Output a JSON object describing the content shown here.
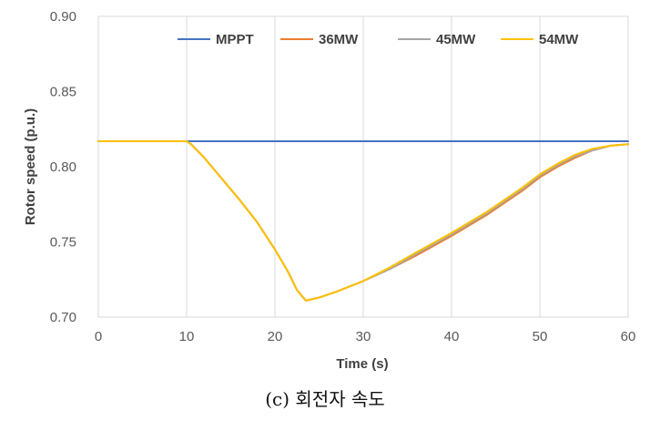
{
  "caption": "(c) 회전자 속도",
  "chart_data": {
    "type": "line",
    "xlabel": "Time (s)",
    "ylabel": "Rotor speed (p.u.)",
    "xlim": [
      0,
      60
    ],
    "ylim": [
      0.7,
      0.9
    ],
    "xticks": [
      0,
      10,
      20,
      30,
      40,
      50,
      60
    ],
    "yticks": [
      0.7,
      0.75,
      0.8,
      0.85,
      0.9
    ],
    "xtick_labels": [
      "0",
      "10",
      "20",
      "30",
      "40",
      "50",
      "60"
    ],
    "ytick_labels": [
      "0.70",
      "0.75",
      "0.80",
      "0.85",
      "0.90"
    ],
    "grid": "vertical",
    "legend_position": "top",
    "series": [
      {
        "name": "MPPT",
        "color": "#4472C4",
        "x": [
          0,
          60
        ],
        "y": [
          0.817,
          0.817
        ]
      },
      {
        "name": "36MW",
        "color": "#ED7D31",
        "x": [
          0,
          10,
          10.5,
          12,
          14,
          16,
          18,
          20,
          21.5,
          22.5,
          23.5,
          25,
          27,
          30,
          33,
          36,
          40,
          44,
          48,
          50,
          52,
          54,
          56,
          58,
          60
        ],
        "y": [
          0.817,
          0.817,
          0.815,
          0.806,
          0.792,
          0.778,
          0.763,
          0.745,
          0.73,
          0.718,
          0.711,
          0.713,
          0.717,
          0.724,
          0.732,
          0.741,
          0.754,
          0.768,
          0.784,
          0.793,
          0.8,
          0.806,
          0.811,
          0.814,
          0.815
        ]
      },
      {
        "name": "45MW",
        "color": "#A5A5A5",
        "x": [
          0,
          10,
          10.5,
          12,
          14,
          16,
          18,
          20,
          21.5,
          22.5,
          23.5,
          25,
          27,
          30,
          33,
          36,
          40,
          44,
          48,
          50,
          52,
          54,
          56,
          58,
          60
        ],
        "y": [
          0.817,
          0.817,
          0.815,
          0.806,
          0.792,
          0.778,
          0.763,
          0.745,
          0.73,
          0.718,
          0.711,
          0.713,
          0.717,
          0.724,
          0.732,
          0.742,
          0.755,
          0.769,
          0.785,
          0.794,
          0.801,
          0.807,
          0.811,
          0.814,
          0.815
        ]
      },
      {
        "name": "54MW",
        "color": "#FFC000",
        "x": [
          0,
          10,
          10.5,
          12,
          14,
          16,
          18,
          20,
          21.5,
          22.5,
          23.5,
          25,
          27,
          30,
          33,
          36,
          40,
          44,
          48,
          50,
          52,
          54,
          56,
          58,
          60
        ],
        "y": [
          0.817,
          0.817,
          0.815,
          0.806,
          0.792,
          0.778,
          0.763,
          0.745,
          0.73,
          0.718,
          0.711,
          0.713,
          0.717,
          0.724,
          0.733,
          0.743,
          0.756,
          0.77,
          0.786,
          0.795,
          0.802,
          0.808,
          0.812,
          0.814,
          0.815
        ]
      }
    ]
  }
}
